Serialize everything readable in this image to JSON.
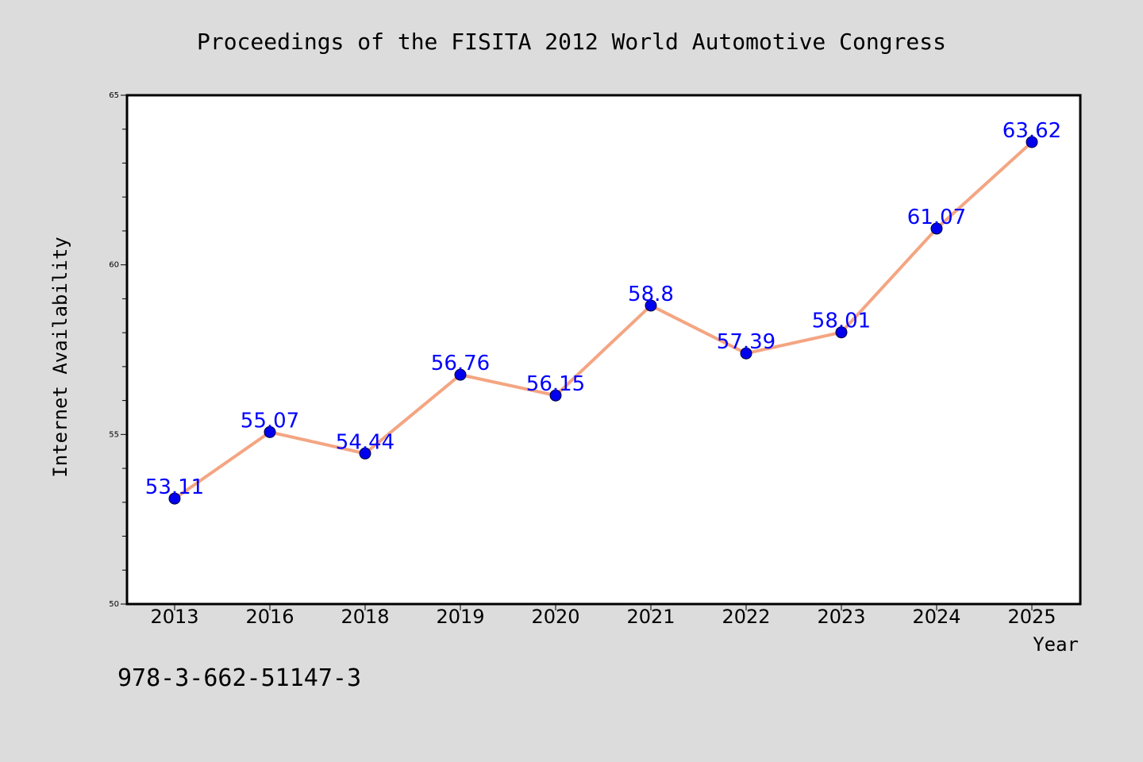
{
  "chart_data": {
    "type": "line",
    "title": "Proceedings of the FISITA 2012 World Automotive Congress",
    "xlabel": "Year",
    "ylabel": "Internet Availability",
    "categories": [
      "2013",
      "2016",
      "2018",
      "2019",
      "2020",
      "2021",
      "2022",
      "2023",
      "2024",
      "2025"
    ],
    "series": [
      {
        "values": [
          53.11,
          55.07,
          54.44,
          56.76,
          56.15,
          58.8,
          57.39,
          58.01,
          61.07,
          63.62
        ],
        "labels": [
          "53.11",
          "55.07",
          "54.44",
          "56.76",
          "56.15",
          "58.8",
          "57.39",
          "58.01",
          "61.07",
          "63.62"
        ]
      }
    ],
    "ylim": [
      50,
      65
    ],
    "yticks": [
      "50",
      "55",
      "60",
      "65"
    ],
    "grid": false,
    "line_color": "#f4a582",
    "marker_color": "#0000ee",
    "label_color": "#0000ff"
  },
  "footer": {
    "isbn": "978-3-662-51147-3"
  }
}
